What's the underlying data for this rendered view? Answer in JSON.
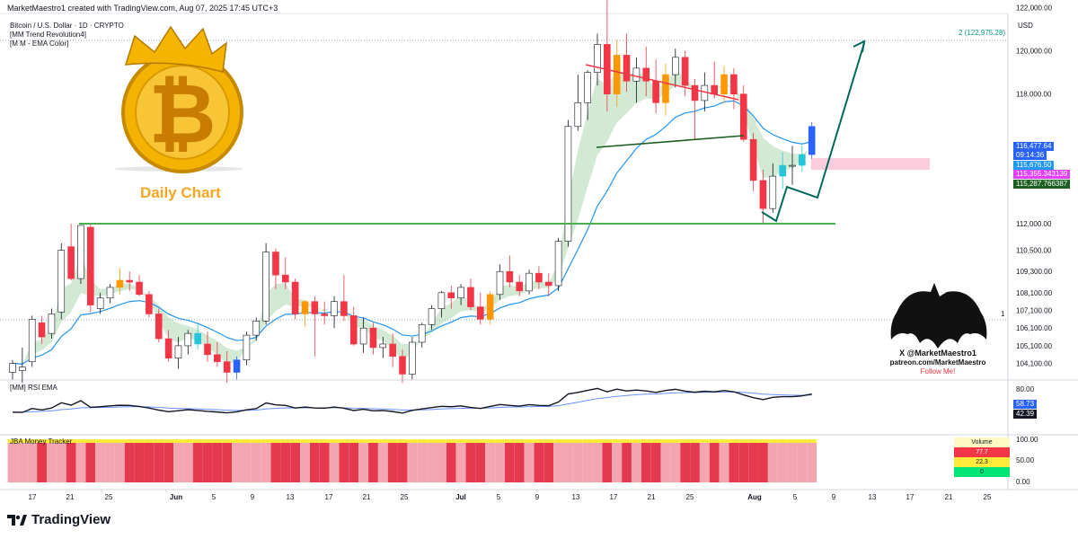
{
  "header": {
    "created_line": "MarketMaestro1 created with TradingView.com, Aug 07, 2025 17:45 UTC+3",
    "symbol_line": "Bitcoin / U.S. Dollar · 1D · CRYPTO",
    "indicator1": "[MM Trend Revolution4]",
    "indicator2": "[M M - EMA Color]",
    "currency": "USD"
  },
  "annotations": {
    "daily_chart": "Daily Chart",
    "target_label": "2 (122,975.28)",
    "level_marker": "1",
    "bat_line1": "X @MarketMaestro1",
    "bat_line2": "patreon.com/MarketMaestro",
    "bat_line3": "Follow Me!"
  },
  "rsi_panel": {
    "label": "[MM] RSI EMA",
    "value1": "58.73",
    "value2": "42.39",
    "color1": "#2962ff",
    "color2": "#131722"
  },
  "money_panel": {
    "label": "JBA Money Tracker"
  },
  "volume_box": {
    "title": "Volume",
    "v1": "77.7",
    "v2": "22.3",
    "v3": "0"
  },
  "brand": {
    "name": "TradingView"
  },
  "price_tags": {
    "last": "116,477.64",
    "countdown": "09:14:36",
    "ema1": "115,676.50",
    "ema2": "115,355.343139",
    "ema3": "115,287.766387"
  },
  "colors": {
    "up": "#ffffff",
    "down": "#f23645",
    "orange": "#ff9800",
    "cyan": "#26c6da",
    "blue": "#2962ff",
    "support": "#4caf50",
    "ema": "#2196f3"
  },
  "chart_data": {
    "type": "candlestick",
    "title": "Bitcoin / U.S. Dollar · 1D · CRYPTO",
    "ylabel": "USD",
    "y_tick_labels": [
      "122,000.00",
      "120,000.00",
      "118,000.00",
      "112,000.00",
      "110,500.00",
      "109,300.00",
      "108,100.00",
      "107,100.00",
      "106,100.00",
      "105,100.00",
      "104,100.00"
    ],
    "x_tick_labels": [
      "17",
      "21",
      "25",
      "Jun",
      "5",
      "9",
      "13",
      "17",
      "21",
      "25",
      "Jul",
      "5",
      "9",
      "13",
      "17",
      "21",
      "25",
      "Aug",
      "5",
      "9",
      "13",
      "17",
      "21",
      "25"
    ],
    "support_level": 111950,
    "resistance_target": 122975.28,
    "rsi_axis": [
      "80.00",
      "40.00"
    ],
    "money_axis": [
      "100.00",
      "50.00",
      "0.00"
    ],
    "ohlc": [
      [
        103600,
        104300,
        103200,
        104100
      ],
      [
        103700,
        105000,
        103000,
        103900
      ],
      [
        104200,
        106800,
        103900,
        106600
      ],
      [
        106400,
        106800,
        105200,
        105600
      ],
      [
        105800,
        107200,
        105500,
        106900
      ],
      [
        107000,
        110900,
        106600,
        110500
      ],
      [
        110700,
        112000,
        108800,
        108900
      ],
      [
        108900,
        111900,
        108600,
        111900
      ],
      [
        111800,
        112000,
        107000,
        107400
      ],
      [
        107200,
        108100,
        106900,
        107800
      ],
      [
        107800,
        108600,
        107500,
        108400
      ],
      [
        108400,
        109500,
        108000,
        108800
      ],
      [
        108800,
        109300,
        108200,
        108700
      ],
      [
        108700,
        109100,
        107900,
        108000
      ],
      [
        108000,
        108200,
        106700,
        106900
      ],
      [
        106900,
        107200,
        105300,
        105500
      ],
      [
        105500,
        106000,
        104200,
        104400
      ],
      [
        104400,
        105600,
        103800,
        105100
      ],
      [
        105100,
        106000,
        104600,
        105800
      ],
      [
        105800,
        106300,
        104900,
        105200
      ],
      [
        105200,
        105900,
        104200,
        104600
      ],
      [
        104600,
        105300,
        103900,
        104200
      ],
      [
        104200,
        104800,
        103000,
        103600
      ],
      [
        103600,
        104500,
        103200,
        104300
      ],
      [
        104300,
        105900,
        104000,
        105700
      ],
      [
        105700,
        106700,
        105400,
        106500
      ],
      [
        106500,
        110900,
        106300,
        110400
      ],
      [
        110400,
        110600,
        108300,
        109100
      ],
      [
        109100,
        110100,
        108300,
        108700
      ],
      [
        108700,
        108900,
        106600,
        106900
      ],
      [
        106900,
        107700,
        106200,
        107600
      ],
      [
        107600,
        107900,
        104500,
        106900
      ],
      [
        106900,
        107600,
        106300,
        106800
      ],
      [
        106800,
        107900,
        106100,
        107600
      ],
      [
        107600,
        109100,
        106500,
        106800
      ],
      [
        106800,
        107300,
        105100,
        105200
      ],
      [
        105200,
        106700,
        104700,
        106100
      ],
      [
        106100,
        106400,
        104600,
        105000
      ],
      [
        105000,
        105600,
        104400,
        105200
      ],
      [
        105200,
        105800,
        103900,
        104500
      ],
      [
        104500,
        104900,
        103000,
        103500
      ],
      [
        103500,
        105600,
        103200,
        105300
      ],
      [
        105300,
        106400,
        105000,
        106300
      ],
      [
        106300,
        107400,
        106000,
        107200
      ],
      [
        107200,
        108200,
        106700,
        108100
      ],
      [
        108100,
        108500,
        107200,
        107800
      ],
      [
        107800,
        108600,
        107400,
        108400
      ],
      [
        108400,
        108900,
        107100,
        107300
      ],
      [
        107300,
        108100,
        106300,
        106600
      ],
      [
        106600,
        108200,
        106300,
        108000
      ],
      [
        108000,
        109700,
        107700,
        109300
      ],
      [
        109300,
        110200,
        108400,
        108700
      ],
      [
        108700,
        109100,
        107900,
        108200
      ],
      [
        108200,
        109400,
        108000,
        109200
      ],
      [
        109200,
        109600,
        108300,
        108700
      ],
      [
        108700,
        109200,
        107900,
        108500
      ],
      [
        108500,
        111200,
        108200,
        111000
      ],
      [
        111000,
        116800,
        110700,
        116500
      ],
      [
        116500,
        118900,
        116300,
        117600
      ],
      [
        117600,
        119100,
        116800,
        119000
      ],
      [
        119000,
        120800,
        118400,
        120300
      ],
      [
        120300,
        123100,
        117200,
        118000
      ],
      [
        118000,
        120500,
        117400,
        119800
      ],
      [
        119800,
        120800,
        118100,
        118600
      ],
      [
        118600,
        119700,
        117600,
        119200
      ],
      [
        119200,
        120200,
        117900,
        118600
      ],
      [
        118600,
        119600,
        117100,
        117600
      ],
      [
        117600,
        119400,
        117000,
        118900
      ],
      [
        118900,
        120100,
        118300,
        119700
      ],
      [
        119700,
        120000,
        117900,
        118400
      ],
      [
        118400,
        118700,
        115900,
        117700
      ],
      [
        117700,
        119000,
        117200,
        118400
      ],
      [
        118400,
        119500,
        117800,
        118000
      ],
      [
        118000,
        119300,
        117600,
        118900
      ],
      [
        118900,
        119200,
        117300,
        118000
      ],
      [
        118000,
        118400,
        115800,
        115900
      ],
      [
        115900,
        116200,
        113500,
        114000
      ],
      [
        114000,
        114500,
        112000,
        112700
      ],
      [
        112700,
        114800,
        112500,
        114200
      ],
      [
        114200,
        115300,
        113600,
        114700
      ],
      [
        114700,
        115600,
        113800,
        114700
      ],
      [
        114700,
        115600,
        114400,
        115200
      ],
      [
        115200,
        116700,
        115000,
        116500
      ]
    ]
  }
}
